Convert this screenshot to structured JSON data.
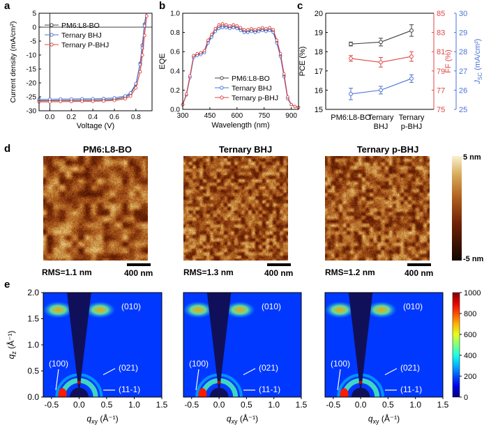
{
  "panel_labels": {
    "a": "a",
    "b": "b",
    "c": "c",
    "d": "d",
    "e": "e"
  },
  "chart_data": [
    {
      "type": "line",
      "panel": "a",
      "xlabel": "Voltage (V)",
      "ylabel": "Current density (mA/cm²)",
      "xlim": [
        -0.1,
        0.95
      ],
      "ylim": [
        -30,
        5
      ],
      "xticks": [
        0.0,
        0.2,
        0.4,
        0.6,
        0.8
      ],
      "xtick_labels": [
        "0.0",
        "0.2",
        "0.4",
        "0.6",
        "0.8"
      ],
      "yticks": [
        -30,
        -25,
        -20,
        -15,
        -10,
        -5,
        0,
        5
      ],
      "ytick_labels": [
        "-30",
        "-25",
        "-20",
        "-15",
        "-10",
        "-5",
        "0",
        "5"
      ],
      "legend_position": "top-left",
      "series": [
        {
          "name": "PM6:L8-BO",
          "color": "#404040",
          "x": [
            -0.1,
            0.0,
            0.1,
            0.2,
            0.3,
            0.4,
            0.5,
            0.6,
            0.7,
            0.75,
            0.8,
            0.84,
            0.86,
            0.88,
            0.9
          ],
          "y": [
            -26.4,
            -26.4,
            -26.3,
            -26.3,
            -26.2,
            -26.2,
            -26.1,
            -25.9,
            -25.2,
            -24.0,
            -20.5,
            -13.0,
            -6.5,
            1.0,
            6.0
          ]
        },
        {
          "name": "Ternary BHJ",
          "color": "#4a72d6",
          "x": [
            -0.1,
            0.0,
            0.1,
            0.2,
            0.3,
            0.4,
            0.5,
            0.6,
            0.7,
            0.75,
            0.8,
            0.84,
            0.86,
            0.88,
            0.9
          ],
          "y": [
            -25.9,
            -25.9,
            -25.8,
            -25.8,
            -25.7,
            -25.7,
            -25.6,
            -25.4,
            -24.7,
            -23.6,
            -20.3,
            -13.5,
            -7.5,
            0.5,
            6.0
          ]
        },
        {
          "name": "Ternary P-BHJ",
          "color": "#e04545",
          "x": [
            -0.1,
            0.0,
            0.1,
            0.2,
            0.3,
            0.4,
            0.5,
            0.6,
            0.7,
            0.75,
            0.8,
            0.84,
            0.86,
            0.88,
            0.9
          ],
          "y": [
            -26.8,
            -26.8,
            -26.7,
            -26.7,
            -26.6,
            -26.6,
            -26.5,
            -26.3,
            -25.7,
            -24.7,
            -21.8,
            -16.0,
            -10.0,
            -3.0,
            4.0
          ]
        }
      ]
    },
    {
      "type": "line",
      "panel": "b",
      "xlabel": "Wavelength (nm)",
      "ylabel": "EQE",
      "xlim": [
        300,
        940
      ],
      "ylim": [
        0.0,
        1.0
      ],
      "xticks": [
        300,
        450,
        600,
        750,
        900
      ],
      "xtick_labels": [
        "300",
        "450",
        "600",
        "750",
        "900"
      ],
      "yticks": [
        0.0,
        0.2,
        0.4,
        0.6,
        0.8,
        1.0
      ],
      "ytick_labels": [
        "0.0",
        "0.2",
        "0.4",
        "0.6",
        "0.8",
        "1.0"
      ],
      "legend_position": "bottom-center",
      "series": [
        {
          "name": "PM6:L8-BO",
          "color": "#404040",
          "x": [
            300,
            320,
            340,
            360,
            380,
            400,
            420,
            440,
            460,
            480,
            500,
            520,
            540,
            560,
            580,
            600,
            620,
            640,
            660,
            680,
            700,
            720,
            740,
            760,
            780,
            800,
            820,
            840,
            860,
            880,
            900,
            920,
            940
          ],
          "y": [
            0.05,
            0.15,
            0.34,
            0.55,
            0.57,
            0.58,
            0.6,
            0.7,
            0.76,
            0.82,
            0.86,
            0.87,
            0.86,
            0.85,
            0.86,
            0.85,
            0.83,
            0.81,
            0.81,
            0.82,
            0.81,
            0.82,
            0.83,
            0.82,
            0.83,
            0.81,
            0.7,
            0.56,
            0.35,
            0.12,
            0.05,
            0.03,
            0.02
          ]
        },
        {
          "name": "Ternary BHJ",
          "color": "#4a72d6",
          "x": [
            300,
            320,
            340,
            360,
            380,
            400,
            420,
            440,
            460,
            480,
            500,
            520,
            540,
            560,
            580,
            600,
            620,
            640,
            660,
            680,
            700,
            720,
            740,
            760,
            780,
            800,
            820,
            840,
            860,
            880,
            900,
            920,
            940
          ],
          "y": [
            0.05,
            0.15,
            0.33,
            0.54,
            0.56,
            0.57,
            0.59,
            0.69,
            0.75,
            0.81,
            0.84,
            0.85,
            0.85,
            0.84,
            0.85,
            0.84,
            0.82,
            0.8,
            0.8,
            0.81,
            0.8,
            0.81,
            0.82,
            0.81,
            0.82,
            0.8,
            0.69,
            0.55,
            0.34,
            0.11,
            0.05,
            0.03,
            0.02
          ]
        },
        {
          "name": "Ternary p-BHJ",
          "color": "#e04545",
          "x": [
            300,
            320,
            340,
            360,
            380,
            400,
            420,
            440,
            460,
            480,
            500,
            520,
            540,
            560,
            580,
            600,
            620,
            640,
            660,
            680,
            700,
            720,
            740,
            760,
            780,
            800,
            820,
            840,
            860,
            880,
            900,
            920,
            940
          ],
          "y": [
            0.05,
            0.16,
            0.35,
            0.56,
            0.58,
            0.59,
            0.61,
            0.72,
            0.78,
            0.84,
            0.88,
            0.89,
            0.88,
            0.87,
            0.88,
            0.87,
            0.85,
            0.83,
            0.83,
            0.84,
            0.83,
            0.84,
            0.85,
            0.84,
            0.85,
            0.83,
            0.72,
            0.58,
            0.37,
            0.13,
            0.05,
            0.03,
            0.02
          ]
        }
      ]
    },
    {
      "type": "line",
      "panel": "c",
      "categories": [
        "PM6:L8-BO",
        "Ternary BHJ",
        "Ternary p-BHJ"
      ],
      "category_labels": [
        [
          "PM6:L8-BO"
        ],
        [
          "Ternary",
          "BHJ"
        ],
        [
          "Ternary",
          "p-BHJ"
        ]
      ],
      "axes": [
        {
          "label": "PCE (%)",
          "side": "left",
          "color": "#000000",
          "ylim": [
            15,
            20
          ],
          "ticks": [
            15,
            16,
            17,
            18,
            19,
            20
          ]
        },
        {
          "label": "FF (%)",
          "side": "right",
          "color": "#e04545",
          "ylim": [
            75,
            85
          ],
          "ticks": [
            75,
            77,
            79,
            81,
            83,
            85
          ]
        },
        {
          "label": "J_SC (mA/cm²)",
          "label_main": "J",
          "label_sub": "SC",
          "label_unit": " (mA/cm²)",
          "side": "right-outer",
          "color": "#4a72d6",
          "ylim": [
            25,
            30
          ],
          "ticks": [
            25,
            26,
            27,
            28,
            29,
            30
          ]
        }
      ],
      "series": [
        {
          "name": "PCE",
          "axis": 0,
          "color": "#404040",
          "values": [
            18.4,
            18.5,
            19.1
          ],
          "errors": [
            0.1,
            0.2,
            0.3
          ]
        },
        {
          "name": "FF",
          "axis": 1,
          "color": "#e04545",
          "values": [
            80.3,
            79.9,
            80.5
          ],
          "errors": [
            0.3,
            0.5,
            0.5
          ]
        },
        {
          "name": "Jsc",
          "axis": 2,
          "color": "#4a72d6",
          "values": [
            25.8,
            26.0,
            26.6
          ],
          "errors": [
            0.3,
            0.2,
            0.2
          ]
        }
      ]
    },
    {
      "type": "heatmap",
      "panel": "e",
      "xlabel_main": "q",
      "xlabel_sub": "xy",
      "xlabel_unit": " (Å⁻¹)",
      "ylabel_main": "q",
      "ylabel_sub": "z",
      "ylabel_unit": " (Å⁻¹)",
      "xlim": [
        -0.65,
        1.5
      ],
      "ylim": [
        0.0,
        2.0
      ],
      "xticks": [
        -0.5,
        0.0,
        0.5,
        1.0,
        1.5
      ],
      "xtick_labels": [
        "-0.5",
        "0.0",
        "0.5",
        "1.0",
        "1.5"
      ],
      "yticks": [
        0.0,
        0.5,
        1.0,
        1.5,
        2.0
      ],
      "ytick_labels": [
        "0.0",
        "0.5",
        "1.0",
        "1.5",
        "2.0"
      ],
      "colorbar": {
        "min": 0,
        "max": 1000,
        "ticks": [
          0,
          200,
          400,
          600,
          800,
          1000
        ],
        "tick_labels": [
          "0",
          "200",
          "400",
          "600",
          "800",
          "1000"
        ]
      },
      "peaks": [
        "(010)",
        "(100)",
        "(021)",
        "(11-1)"
      ]
    }
  ],
  "afm": {
    "images": [
      {
        "title": "PM6:L8-BO",
        "rms": "RMS=1.1 nm",
        "scale": "400 nm"
      },
      {
        "title": "Ternary BHJ",
        "rms": "RMS=1.3 nm",
        "scale": "400 nm"
      },
      {
        "title": "Ternary p-BHJ",
        "rms": "RMS=1.2 nm",
        "scale": "400 nm"
      }
    ],
    "colorbar_max": "5 nm",
    "colorbar_min": "-5 nm"
  },
  "giwaxs_x_overlap_label": "-0.5"
}
